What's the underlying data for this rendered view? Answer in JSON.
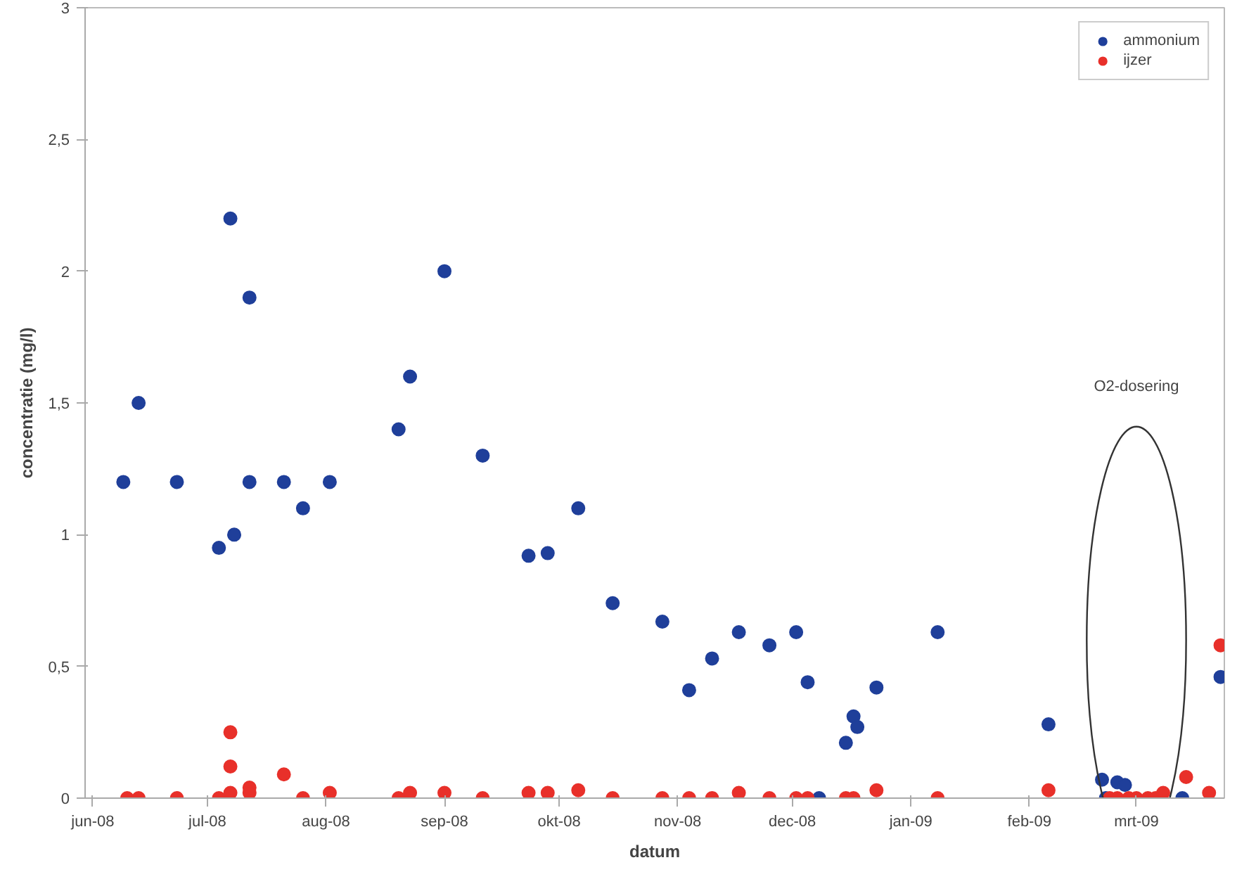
{
  "chart_data": {
    "type": "scatter",
    "xlabel": "datum",
    "ylabel": "concentratie (mg/l)",
    "xlim": [
      "2008-05-30",
      "2009-03-24"
    ],
    "ylim": [
      0,
      3
    ],
    "xticks": [
      {
        "value": "2008-06-01",
        "label": "jun-08"
      },
      {
        "value": "2008-07-01",
        "label": "jul-08"
      },
      {
        "value": "2008-08-01",
        "label": "aug-08"
      },
      {
        "value": "2008-09-01",
        "label": "sep-08"
      },
      {
        "value": "2008-10-01",
        "label": "okt-08"
      },
      {
        "value": "2008-11-01",
        "label": "nov-08"
      },
      {
        "value": "2008-12-01",
        "label": "dec-08"
      },
      {
        "value": "2009-01-01",
        "label": "jan-09"
      },
      {
        "value": "2009-02-01",
        "label": "feb-09"
      },
      {
        "value": "2009-03-01",
        "label": "mrt-09"
      }
    ],
    "yticks": [
      0,
      {
        "value": 0.5,
        "label": "0,5"
      },
      1,
      {
        "value": 1.5,
        "label": "1,5"
      },
      2,
      {
        "value": 2.5,
        "label": "2,5"
      },
      3
    ],
    "grid": false,
    "legend": "top right",
    "marker": "circle",
    "annotations": [
      "O2-dosering"
    ],
    "series": [
      {
        "name": "ammonium",
        "color": "#1f3f9a",
        "x": [
          "2008-06-09",
          "2008-06-13",
          "2008-06-23",
          "2008-07-04",
          "2008-07-08",
          "2008-07-07",
          "2008-07-12",
          "2008-07-12",
          "2008-07-21",
          "2008-07-26",
          "2008-08-02",
          "2008-08-20",
          "2008-08-23",
          "2008-09-01",
          "2008-09-11",
          "2008-09-23",
          "2008-09-28",
          "2008-10-06",
          "2008-10-15",
          "2008-10-28",
          "2008-11-04",
          "2008-11-10",
          "2008-11-17",
          "2008-11-25",
          "2008-12-02",
          "2008-12-05",
          "2008-12-08",
          "2008-12-15",
          "2008-12-17",
          "2008-12-18",
          "2008-12-23",
          "2009-01-08",
          "2009-02-06",
          "2009-02-20",
          "2009-02-24",
          "2009-02-26",
          "2009-02-21",
          "2009-03-13",
          "2009-03-23"
        ],
        "values": [
          1.2,
          1.5,
          1.2,
          0.95,
          1.0,
          2.2,
          1.9,
          1.2,
          1.2,
          1.1,
          1.2,
          1.4,
          1.6,
          2.0,
          1.3,
          0.92,
          0.93,
          1.1,
          0.74,
          0.67,
          0.41,
          0.53,
          0.63,
          0.58,
          0.63,
          0.44,
          0.0,
          0.21,
          0.31,
          0.27,
          0.42,
          0.63,
          0.28,
          0.07,
          0.06,
          0.05,
          0.0,
          0.0,
          0.46
        ]
      },
      {
        "name": "ijzer",
        "color": "#e8302a",
        "x": [
          "2008-06-10",
          "2008-06-13",
          "2008-06-23",
          "2008-07-04",
          "2008-07-07",
          "2008-07-07",
          "2008-07-07",
          "2008-07-12",
          "2008-07-12",
          "2008-07-21",
          "2008-07-26",
          "2008-08-02",
          "2008-08-20",
          "2008-08-23",
          "2008-09-01",
          "2008-09-11",
          "2008-09-23",
          "2008-09-28",
          "2008-10-06",
          "2008-10-15",
          "2008-10-28",
          "2008-11-04",
          "2008-11-10",
          "2008-11-17",
          "2008-11-25",
          "2008-12-02",
          "2008-12-05",
          "2008-12-15",
          "2008-12-17",
          "2008-12-23",
          "2009-01-08",
          "2009-02-06",
          "2009-02-22",
          "2009-02-24",
          "2009-02-27",
          "2009-03-01",
          "2009-03-04",
          "2009-03-06",
          "2009-03-08",
          "2009-03-14",
          "2009-03-20",
          "2009-03-23"
        ],
        "values": [
          0,
          0,
          0,
          0,
          0.02,
          0.12,
          0.25,
          0.04,
          0.02,
          0.09,
          0,
          0.02,
          0,
          0.02,
          0.02,
          0,
          0.02,
          0.02,
          0.03,
          0,
          0,
          0,
          0,
          0.02,
          0,
          0,
          0,
          0,
          0,
          0.03,
          0,
          0.03,
          0,
          0,
          0,
          0,
          0,
          0,
          0.02,
          0.08,
          0.02,
          0.58
        ]
      }
    ]
  }
}
